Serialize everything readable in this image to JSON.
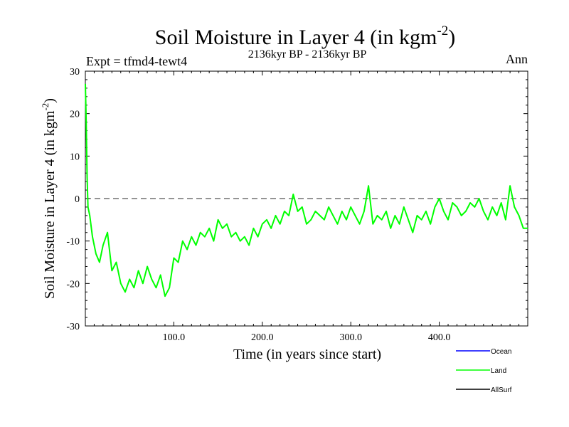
{
  "header": {
    "title_main": "Soil Moisture in Layer 4 (in kgm",
    "title_exp": "-2",
    "title_close": ")",
    "expt": "Expt = tfmd4-tewt4",
    "period": "2136kyr BP - 2136kyr BP",
    "season": "Ann"
  },
  "colors": {
    "ocean": "#0000ff",
    "land": "#00ff00",
    "allsurf": "#000000",
    "zero_line": "#555555"
  },
  "chart_data": {
    "type": "line",
    "title": "Soil Moisture in Layer 4 (in kgm-2)",
    "xlabel": "Time (in years since start)",
    "ylabel_main": "Soil Moisture in Layer 4 (in kgm",
    "ylabel_exp": "-2",
    "ylabel_close": ")",
    "xlim": [
      0,
      500
    ],
    "ylim": [
      -30,
      30
    ],
    "xticks": [
      100,
      200,
      300,
      400
    ],
    "xtick_labels": [
      "100.0",
      "200.0",
      "300.0",
      "400.0"
    ],
    "yticks": [
      -30,
      -20,
      -10,
      0,
      10,
      20,
      30
    ],
    "ytick_labels": [
      "-30",
      "-20",
      "-10",
      "0",
      "10",
      "20",
      "30"
    ],
    "reference_line": 0,
    "legend": [
      {
        "name": "Ocean",
        "color": "#0000ff"
      },
      {
        "name": "Land",
        "color": "#00ff00"
      },
      {
        "name": "AllSurf",
        "color": "#000000"
      }
    ],
    "series": [
      {
        "name": "Land",
        "color": "#00ff00",
        "x": [
          0,
          1,
          2,
          3,
          5,
          8,
          12,
          16,
          20,
          25,
          30,
          35,
          40,
          45,
          50,
          55,
          60,
          65,
          70,
          75,
          80,
          85,
          90,
          95,
          100,
          105,
          110,
          115,
          120,
          125,
          130,
          135,
          140,
          145,
          150,
          155,
          160,
          165,
          170,
          175,
          180,
          185,
          190,
          195,
          200,
          205,
          210,
          215,
          220,
          225,
          230,
          235,
          240,
          245,
          250,
          255,
          260,
          265,
          270,
          275,
          280,
          285,
          290,
          295,
          300,
          305,
          310,
          315,
          320,
          325,
          330,
          335,
          340,
          345,
          350,
          355,
          360,
          365,
          370,
          375,
          380,
          385,
          390,
          395,
          400,
          405,
          410,
          415,
          420,
          425,
          430,
          435,
          440,
          445,
          450,
          455,
          460,
          465,
          470,
          475,
          480,
          485,
          490,
          495,
          500
        ],
        "values": [
          27,
          18,
          5,
          -2,
          -4,
          -9,
          -13,
          -15,
          -11,
          -8,
          -17,
          -15,
          -20,
          -22,
          -19,
          -21,
          -17,
          -20,
          -16,
          -19,
          -21,
          -18,
          -23,
          -21,
          -14,
          -15,
          -10,
          -12,
          -9,
          -11,
          -8,
          -9,
          -7,
          -10,
          -5,
          -7,
          -6,
          -9,
          -8,
          -10,
          -9,
          -11,
          -7,
          -9,
          -6,
          -5,
          -7,
          -4,
          -6,
          -3,
          -4,
          1,
          -3,
          -2,
          -6,
          -5,
          -3,
          -4,
          -5,
          -2,
          -4,
          -6,
          -3,
          -5,
          -2,
          -4,
          -6,
          -3,
          3,
          -6,
          -4,
          -5,
          -3,
          -7,
          -4,
          -6,
          -2,
          -5,
          -8,
          -4,
          -5,
          -3,
          -6,
          -2,
          0,
          -3,
          -5,
          -1,
          -2,
          -4,
          -3,
          -1,
          -2,
          0,
          -3,
          -5,
          -2,
          -4,
          -1,
          -5,
          3,
          -2,
          -4,
          -7,
          -7
        ]
      }
    ]
  }
}
